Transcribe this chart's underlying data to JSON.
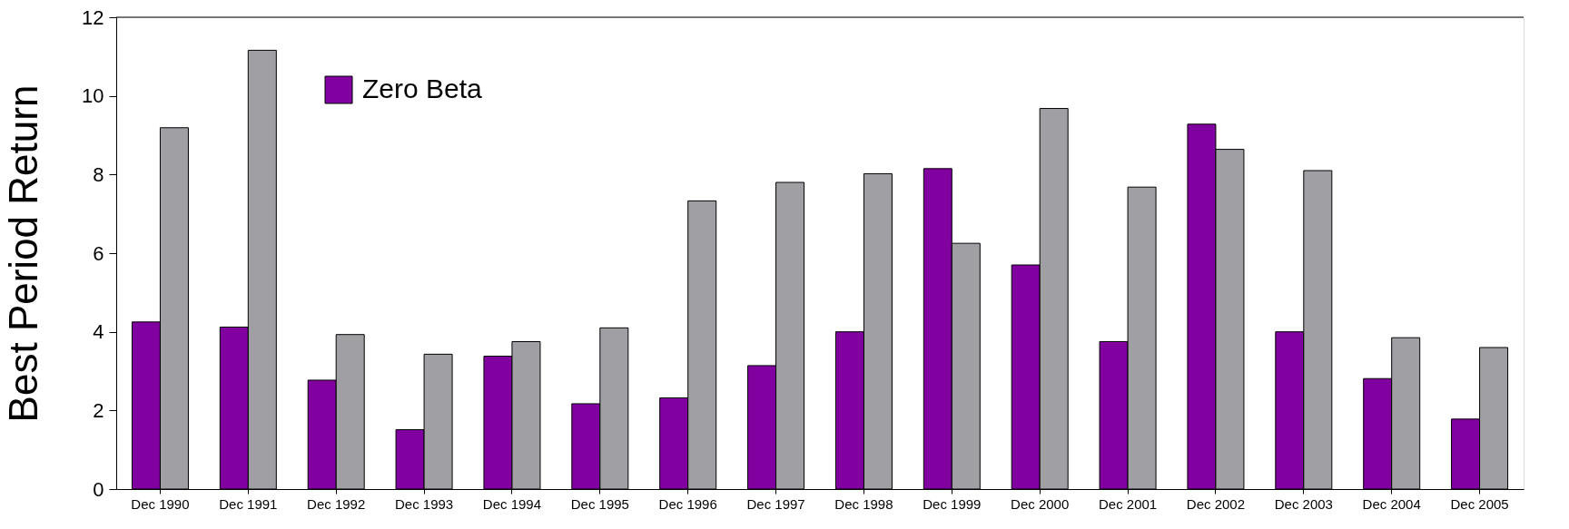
{
  "chart_data": {
    "type": "bar",
    "ylabel": "Best Period Return",
    "categories": [
      "Dec 1990",
      "Dec 1991",
      "Dec 1992",
      "Dec 1993",
      "Dec 1994",
      "Dec 1995",
      "Dec 1996",
      "Dec 1997",
      "Dec 1998",
      "Dec 1999",
      "Dec 2000",
      "Dec 2001",
      "Dec 2002",
      "Dec 2003",
      "Dec 2004",
      "Dec 2005"
    ],
    "series": [
      {
        "name": "Zero Beta",
        "color": "#8000a0",
        "values": [
          4.25,
          4.12,
          2.77,
          1.51,
          3.38,
          2.17,
          2.32,
          3.14,
          4.0,
          8.15,
          5.7,
          3.75,
          9.28,
          4.0,
          2.81,
          1.78
        ]
      },
      {
        "color": "#a0a0a4",
        "values": [
          9.19,
          11.16,
          3.93,
          3.43,
          3.75,
          4.1,
          7.33,
          7.8,
          8.02,
          6.25,
          9.68,
          7.68,
          8.64,
          8.1,
          3.85,
          3.6
        ]
      }
    ],
    "ylim": [
      0,
      12
    ],
    "yticks": [
      0,
      2,
      4,
      6,
      8,
      10,
      12
    ],
    "grid": false,
    "legend": "top left"
  }
}
